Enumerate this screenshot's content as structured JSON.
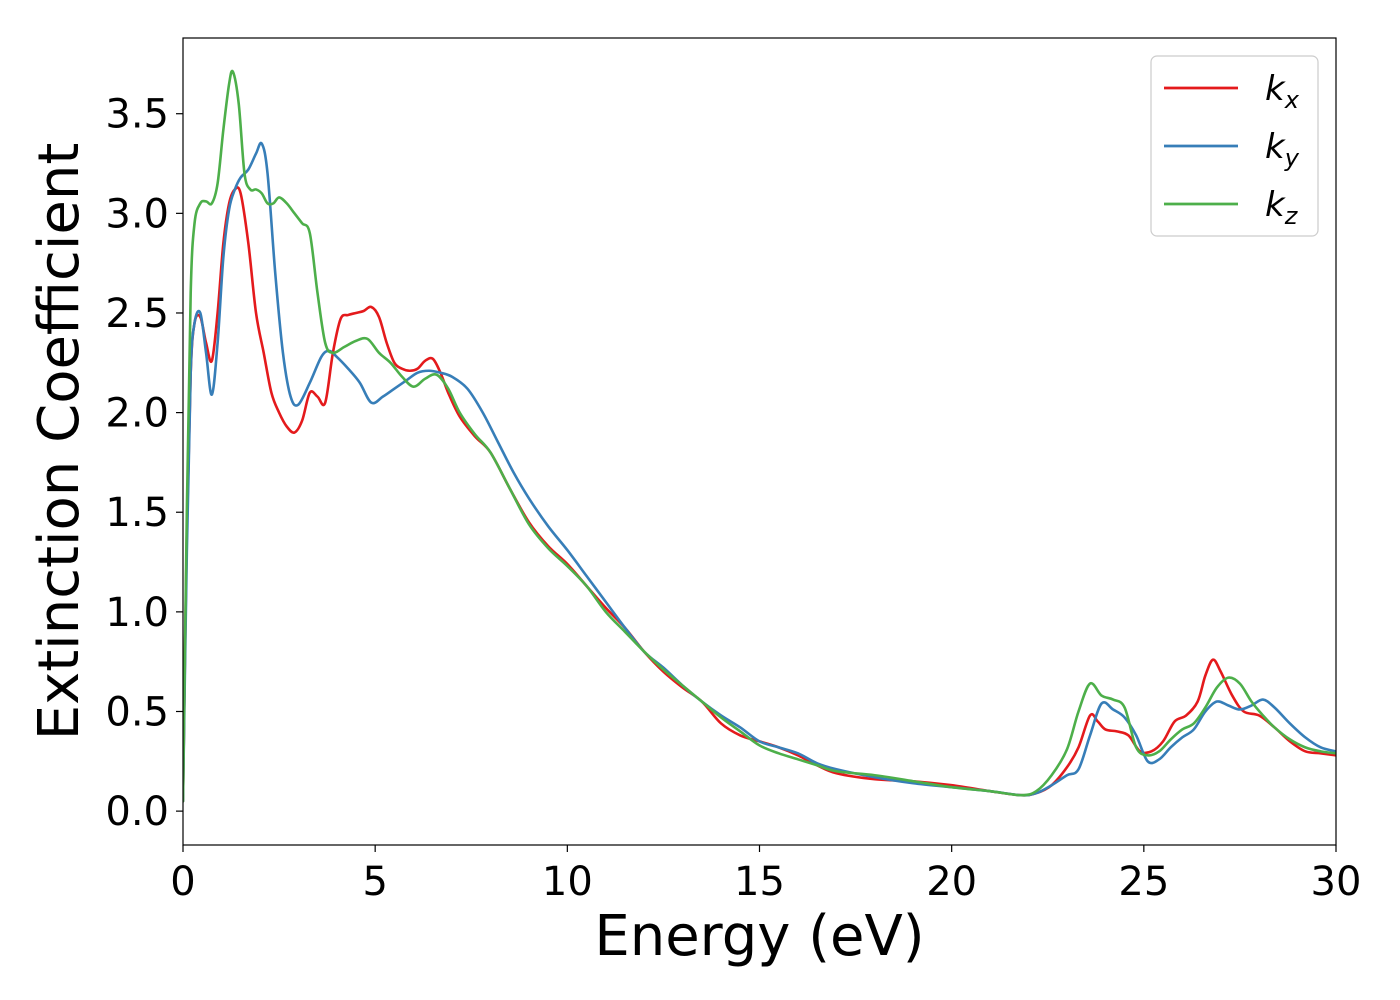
{
  "chart_data": {
    "type": "line",
    "title": "",
    "xlabel": "Energy (eV)",
    "ylabel": "Extinction Coefficient",
    "xlim": [
      0,
      30
    ],
    "ylim": [
      -0.17,
      3.88
    ],
    "xticks": [
      0,
      5,
      10,
      15,
      20,
      25,
      30
    ],
    "xtick_labels": [
      "0",
      "5",
      "10",
      "15",
      "20",
      "25",
      "30"
    ],
    "yticks": [
      0.0,
      0.5,
      1.0,
      1.5,
      2.0,
      2.5,
      3.0,
      3.5
    ],
    "ytick_labels": [
      "0.0",
      "0.5",
      "1.0",
      "1.5",
      "2.0",
      "2.5",
      "3.0",
      "3.5"
    ],
    "grid": false,
    "legend_position": "top-right",
    "series": [
      {
        "name": "k",
        "subscript": "x",
        "color": "#e41a1c",
        "x": [
          0,
          0.1,
          0.2,
          0.3,
          0.45,
          0.6,
          0.75,
          0.9,
          1.05,
          1.2,
          1.35,
          1.5,
          1.7,
          1.9,
          2.1,
          2.3,
          2.5,
          2.7,
          2.9,
          3.1,
          3.3,
          3.5,
          3.7,
          3.9,
          4.1,
          4.3,
          4.5,
          4.7,
          4.9,
          5.1,
          5.3,
          5.5,
          5.7,
          5.9,
          6.1,
          6.3,
          6.5,
          6.7,
          6.9,
          7.2,
          7.6,
          8.0,
          8.5,
          9.0,
          9.5,
          10.0,
          10.5,
          11.0,
          11.5,
          12.0,
          12.5,
          13.0,
          13.5,
          14.0,
          14.5,
          15.0,
          15.5,
          16.0,
          16.5,
          17.0,
          18.0,
          19.0,
          20.0,
          21.0,
          21.8,
          22.2,
          22.6,
          23.0,
          23.3,
          23.6,
          23.8,
          24.0,
          24.3,
          24.6,
          24.9,
          25.2,
          25.5,
          25.8,
          26.1,
          26.4,
          26.6,
          26.8,
          27.0,
          27.3,
          27.6,
          28.0,
          28.4,
          28.8,
          29.2,
          29.6,
          30.0
        ],
        "y": [
          0.05,
          1.4,
          2.2,
          2.45,
          2.48,
          2.35,
          2.26,
          2.5,
          2.85,
          3.05,
          3.12,
          3.1,
          2.85,
          2.5,
          2.3,
          2.1,
          2.0,
          1.93,
          1.9,
          1.96,
          2.1,
          2.08,
          2.05,
          2.3,
          2.47,
          2.49,
          2.5,
          2.51,
          2.53,
          2.48,
          2.35,
          2.25,
          2.22,
          2.21,
          2.22,
          2.26,
          2.27,
          2.2,
          2.1,
          1.98,
          1.88,
          1.8,
          1.62,
          1.45,
          1.33,
          1.24,
          1.13,
          1.02,
          0.92,
          0.8,
          0.7,
          0.62,
          0.55,
          0.44,
          0.38,
          0.35,
          0.32,
          0.28,
          0.23,
          0.19,
          0.16,
          0.15,
          0.13,
          0.1,
          0.08,
          0.09,
          0.13,
          0.22,
          0.32,
          0.48,
          0.45,
          0.41,
          0.4,
          0.38,
          0.3,
          0.3,
          0.35,
          0.45,
          0.48,
          0.55,
          0.68,
          0.76,
          0.7,
          0.58,
          0.5,
          0.48,
          0.42,
          0.35,
          0.3,
          0.29,
          0.28
        ]
      },
      {
        "name": "k",
        "subscript": "y",
        "color": "#377eb8",
        "x": [
          0,
          0.1,
          0.2,
          0.3,
          0.45,
          0.6,
          0.75,
          0.9,
          1.05,
          1.2,
          1.35,
          1.5,
          1.7,
          1.9,
          2.05,
          2.2,
          2.4,
          2.6,
          2.8,
          3.0,
          3.3,
          3.6,
          3.8,
          4.0,
          4.3,
          4.6,
          4.9,
          5.2,
          5.5,
          5.8,
          6.1,
          6.4,
          6.7,
          7.0,
          7.4,
          7.8,
          8.2,
          8.6,
          9.0,
          9.5,
          10.0,
          10.5,
          11.0,
          11.5,
          12.0,
          12.5,
          13.0,
          13.5,
          14.0,
          14.5,
          15.0,
          15.5,
          16.0,
          16.5,
          17.0,
          18.0,
          19.0,
          20.0,
          21.0,
          21.8,
          22.2,
          22.6,
          23.0,
          23.3,
          23.6,
          23.9,
          24.2,
          24.5,
          24.8,
          25.1,
          25.4,
          25.7,
          26.0,
          26.3,
          26.6,
          26.9,
          27.2,
          27.5,
          27.8,
          28.1,
          28.4,
          28.8,
          29.2,
          29.6,
          30.0
        ],
        "y": [
          0.05,
          1.3,
          2.2,
          2.45,
          2.5,
          2.3,
          2.09,
          2.35,
          2.78,
          3.02,
          3.12,
          3.18,
          3.22,
          3.3,
          3.35,
          3.2,
          2.7,
          2.3,
          2.08,
          2.04,
          2.15,
          2.28,
          2.31,
          2.28,
          2.22,
          2.15,
          2.05,
          2.08,
          2.12,
          2.16,
          2.2,
          2.21,
          2.2,
          2.18,
          2.12,
          2.0,
          1.85,
          1.7,
          1.57,
          1.43,
          1.31,
          1.18,
          1.05,
          0.92,
          0.8,
          0.72,
          0.63,
          0.55,
          0.48,
          0.42,
          0.35,
          0.32,
          0.29,
          0.24,
          0.21,
          0.17,
          0.14,
          0.12,
          0.1,
          0.08,
          0.09,
          0.13,
          0.18,
          0.21,
          0.38,
          0.54,
          0.51,
          0.47,
          0.38,
          0.25,
          0.26,
          0.32,
          0.37,
          0.41,
          0.5,
          0.55,
          0.53,
          0.51,
          0.53,
          0.56,
          0.52,
          0.44,
          0.37,
          0.32,
          0.3
        ]
      },
      {
        "name": "k",
        "subscript": "z",
        "color": "#4daf4a",
        "x": [
          0,
          0.1,
          0.2,
          0.3,
          0.45,
          0.6,
          0.75,
          0.9,
          1.05,
          1.2,
          1.3,
          1.45,
          1.6,
          1.75,
          1.9,
          2.05,
          2.2,
          2.35,
          2.5,
          2.7,
          2.9,
          3.1,
          3.3,
          3.5,
          3.7,
          3.9,
          4.2,
          4.5,
          4.8,
          5.1,
          5.4,
          5.7,
          6.0,
          6.3,
          6.6,
          6.9,
          7.2,
          7.6,
          8.0,
          8.5,
          9.0,
          9.5,
          10.0,
          10.5,
          11.0,
          11.5,
          12.0,
          12.5,
          13.0,
          13.5,
          14.0,
          14.5,
          15.0,
          15.5,
          16.0,
          16.5,
          17.0,
          18.0,
          19.0,
          20.0,
          21.0,
          21.8,
          22.2,
          22.6,
          23.0,
          23.3,
          23.6,
          23.9,
          24.2,
          24.5,
          24.8,
          25.1,
          25.4,
          25.7,
          26.0,
          26.3,
          26.6,
          26.9,
          27.2,
          27.5,
          27.8,
          28.1,
          28.4,
          28.8,
          29.2,
          29.6,
          30.0
        ],
        "y": [
          0.05,
          1.5,
          2.6,
          2.95,
          3.05,
          3.06,
          3.05,
          3.15,
          3.42,
          3.65,
          3.71,
          3.55,
          3.2,
          3.12,
          3.12,
          3.1,
          3.05,
          3.05,
          3.08,
          3.05,
          3.0,
          2.95,
          2.9,
          2.6,
          2.35,
          2.3,
          2.33,
          2.36,
          2.37,
          2.3,
          2.25,
          2.18,
          2.13,
          2.17,
          2.19,
          2.12,
          2.0,
          1.89,
          1.8,
          1.62,
          1.44,
          1.32,
          1.23,
          1.13,
          1.0,
          0.9,
          0.8,
          0.71,
          0.63,
          0.55,
          0.47,
          0.4,
          0.33,
          0.29,
          0.26,
          0.23,
          0.2,
          0.18,
          0.15,
          0.12,
          0.1,
          0.08,
          0.1,
          0.18,
          0.31,
          0.5,
          0.64,
          0.58,
          0.56,
          0.52,
          0.32,
          0.28,
          0.3,
          0.36,
          0.41,
          0.44,
          0.52,
          0.62,
          0.67,
          0.64,
          0.55,
          0.48,
          0.42,
          0.36,
          0.32,
          0.3,
          0.29
        ]
      }
    ]
  }
}
